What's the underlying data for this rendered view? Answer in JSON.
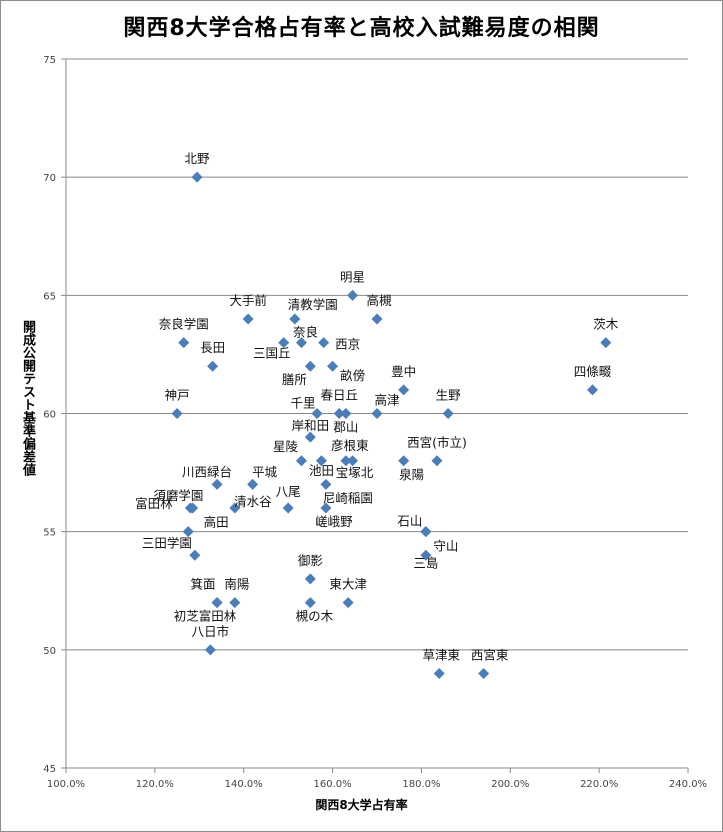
{
  "chart_data": {
    "type": "scatter",
    "title": "関西8大学合格占有率と高校入試難易度の相関",
    "xlabel": "関西8大学占有率",
    "ylabel": "開成公開テスト基準偏差値",
    "xlim": [
      100,
      240
    ],
    "ylim": [
      45,
      75
    ],
    "x_ticks": [
      "100.0%",
      "120.0%",
      "140.0%",
      "160.0%",
      "180.0%",
      "200.0%",
      "220.0%",
      "240.0%"
    ],
    "y_ticks": [
      "45",
      "50",
      "55",
      "60",
      "65",
      "70",
      "75"
    ],
    "grid": "horizontal",
    "marker": "diamond",
    "marker_color": "#4a7ebb",
    "points": [
      {
        "label": "北野",
        "x": 129.5,
        "y": 70
      },
      {
        "label": "明星",
        "x": 164.5,
        "y": 65
      },
      {
        "label": "大手前",
        "x": 141,
        "y": 64
      },
      {
        "label": "清教学園",
        "x": 151.5,
        "y": 64
      },
      {
        "label": "高槻",
        "x": 170,
        "y": 64
      },
      {
        "label": "茨木",
        "x": 221.5,
        "y": 63
      },
      {
        "label": "奈良学園",
        "x": 126.5,
        "y": 63
      },
      {
        "label": "奈良",
        "x": 153,
        "y": 63
      },
      {
        "label": "西京",
        "x": 158,
        "y": 63
      },
      {
        "label": "三国丘",
        "x": 149,
        "y": 63
      },
      {
        "label": "長田",
        "x": 133,
        "y": 62
      },
      {
        "label": "膳所",
        "x": 155,
        "y": 62
      },
      {
        "label": "畝傍",
        "x": 160,
        "y": 62
      },
      {
        "label": "豊中",
        "x": 176,
        "y": 61
      },
      {
        "label": "四條畷",
        "x": 218.5,
        "y": 61
      },
      {
        "label": "神戸",
        "x": 125,
        "y": 60
      },
      {
        "label": "千里",
        "x": 156.5,
        "y": 60
      },
      {
        "label": "春日丘",
        "x": 161.5,
        "y": 60
      },
      {
        "label": "郡山",
        "x": 163,
        "y": 60
      },
      {
        "label": "高津",
        "x": 170,
        "y": 60
      },
      {
        "label": "生野",
        "x": 186,
        "y": 60
      },
      {
        "label": "岸和田",
        "x": 155,
        "y": 59
      },
      {
        "label": "星陵",
        "x": 153,
        "y": 58
      },
      {
        "label": "池田",
        "x": 157.5,
        "y": 58
      },
      {
        "label": "彦根東",
        "x": 163,
        "y": 58
      },
      {
        "label": "宝塚北",
        "x": 164.5,
        "y": 58
      },
      {
        "label": "西宮(市立)",
        "x": 183.5,
        "y": 58
      },
      {
        "label": "泉陽",
        "x": 176,
        "y": 58
      },
      {
        "label": "川西緑台",
        "x": 134,
        "y": 57
      },
      {
        "label": "平城",
        "x": 142,
        "y": 57
      },
      {
        "label": "尼崎稲園",
        "x": 158.5,
        "y": 57
      },
      {
        "label": "須磨学園",
        "x": 128,
        "y": 56
      },
      {
        "label": "富田林",
        "x": 128.5,
        "y": 56
      },
      {
        "label": "清水谷",
        "x": 138,
        "y": 56
      },
      {
        "label": "八尾",
        "x": 150,
        "y": 56
      },
      {
        "label": "嵯峨野",
        "x": 158.5,
        "y": 56
      },
      {
        "label": "高田",
        "x": 127.5,
        "y": 55
      },
      {
        "label": "石山",
        "x": 181,
        "y": 55
      },
      {
        "label": "三田学園",
        "x": 129,
        "y": 54
      },
      {
        "label": "守山",
        "x": 181,
        "y": 54
      },
      {
        "label": "御影",
        "x": 155,
        "y": 53
      },
      {
        "label": "箕面",
        "x": 134,
        "y": 52
      },
      {
        "label": "南陽",
        "x": 138,
        "y": 52
      },
      {
        "label": "東大津",
        "x": 163.5,
        "y": 52
      },
      {
        "label": "槻の木",
        "x": 155,
        "y": 52
      },
      {
        "label": "初芝富田林",
        "x": 134,
        "y": 52
      },
      {
        "label": "八日市",
        "x": 132.5,
        "y": 50
      },
      {
        "label": "三島",
        "x": 181,
        "y": 55
      },
      {
        "label": "草津東",
        "x": 184,
        "y": 49
      },
      {
        "label": "西宮東",
        "x": 194,
        "y": 49
      }
    ]
  }
}
